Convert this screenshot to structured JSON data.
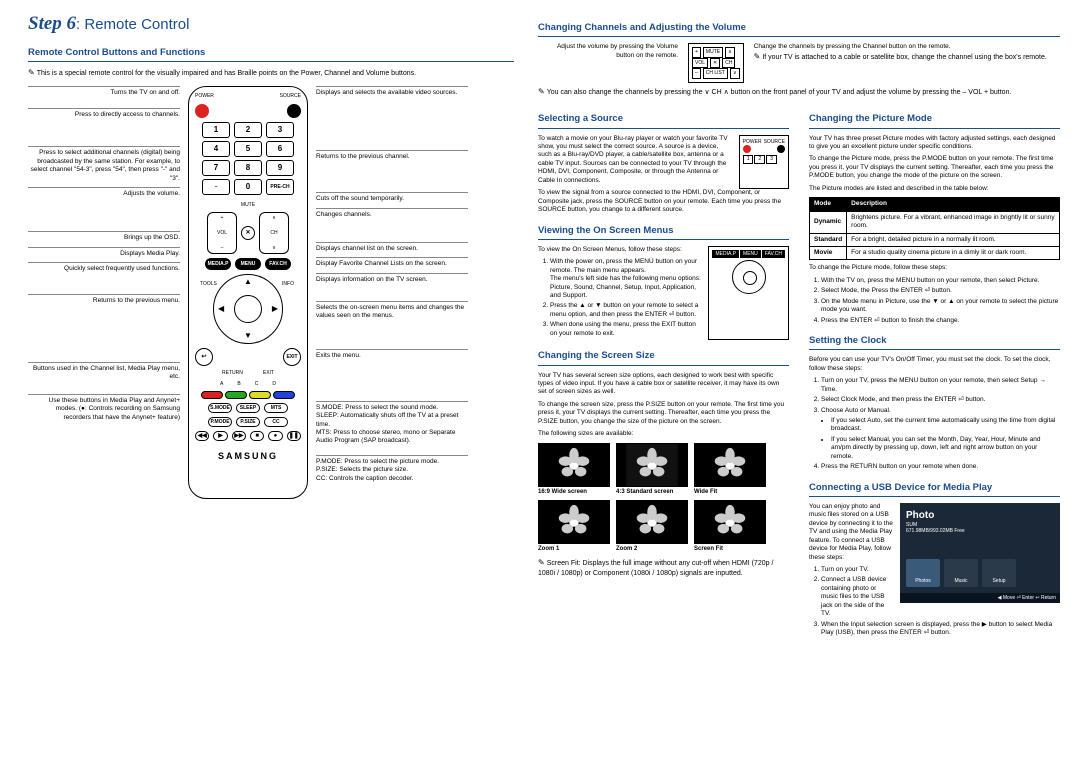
{
  "step": {
    "label": "Step 6",
    "title": "Remote Control"
  },
  "left": {
    "section1": "Remote Control Buttons and Functions",
    "introNote": "This is a special remote control for the visually impaired and has Braille points on the Power, Channel and Volume buttons.",
    "calloutsLeft": [
      "Turns the TV on and off.",
      "Press to directly access to channels.",
      "Press to select additional channels (digital) being broadcasted by the same station. For example, to select channel \"54-3\", press \"54\", then press \"-\" and \"3\".",
      "Adjusts the volume.",
      "Brings up the OSD.",
      "Displays Media Play.",
      "Quickly select frequently used functions.",
      "Returns to the previous menu.",
      "Buttons used in the Channel list, Media Play menu, etc.",
      "Use these buttons in Media Play and Anynet+ modes. (●: Controls recording on Samsung recorders that have the Anynet+ feature)"
    ],
    "calloutsRight": [
      "Displays and selects the available video sources.",
      "Returns to the previous channel.",
      "Cuts off the sound temporarily.",
      "Changes channels.",
      "Displays channel list on the screen.",
      "Display Favorite Channel Lists on the screen.",
      "Displays information on the TV screen.",
      "Selects the on-screen menu items and changes the values seen on the menus.",
      "Exits the menu.",
      "S.MODE: Press to select the sound mode.\nSLEEP: Automatically shuts off the TV at a preset time.\nMTS: Press to choose stereo, mono or Separate Audio Program (SAP broadcast).",
      "P.MODE: Press to select the picture mode.\nP.SIZE: Selects the picture size.\nCC: Controls the caption decoder."
    ],
    "remote": {
      "topLabels": {
        "power": "POWER",
        "source": "SOURCE"
      },
      "numpad": [
        [
          "1",
          "2",
          "3"
        ],
        [
          "4",
          "5",
          "6"
        ],
        [
          "7",
          "8",
          "9"
        ],
        [
          "–",
          "0",
          "PRE-CH"
        ]
      ],
      "mute": "MUTE",
      "volLabel": "VOL",
      "chLabel": "CH",
      "menuRow": [
        "MEDIA.P",
        "MENU",
        "FAV.CH"
      ],
      "tools": "TOOLS",
      "info": "INFO",
      "return": "RETURN",
      "exit": "EXIT",
      "colorLabels": [
        "A",
        "B",
        "C",
        "D"
      ],
      "colors": [
        "#d22",
        "#2a2",
        "#dd2",
        "#24d"
      ],
      "row1": [
        "S.MODE",
        "SLEEP",
        "MTS"
      ],
      "row2": [
        "P.MODE",
        "P.SIZE",
        "CC"
      ],
      "transport": [
        "◀◀",
        "▶",
        "▶▶",
        "■",
        "●",
        "❚❚"
      ],
      "brand": "SAMSUNG"
    }
  },
  "right": {
    "topSection": "Changing Channels and Adjusting the Volume",
    "topLeft": "Adjust the volume by pressing the Volume button on the remote.",
    "topRight": "Change the channels by pressing the Channel button on the remote.",
    "topRightNote": "If your TV is attached to a cable or satellite box, change the channel using the box's remote.",
    "chNote": "You can also change the channels by pressing the ∨ CH ∧ button on the front panel of your TV and adjust the volume by pressing the – VOL + button.",
    "selSource": {
      "h": "Selecting a Source",
      "p1": "To watch a movie on your Blu-ray player or watch your favorite TV show, you must select the correct source. A source is a device, such as a Blu-ray/DVD player, a cable/satellite box, antenna or a cable TV input. Sources can be connected to your TV through the HDMI, DVI, Component, Composite, or through the Antenna or Cable In connections.",
      "p2": "To view the signal from a source connected to the HDMI, DVI, Component, or Composite jack, press the SOURCE button on your remote. Each time you press the SOURCE button, you change to a different source."
    },
    "osm": {
      "h": "Viewing the On Screen Menus",
      "intro": "To view the On Screen Menus, follow these steps:",
      "s1": "With the power on, press the MENU button on your remote. The main menu appears.",
      "s1b": "The menu's left side has the following menu options: Picture, Sound, Channel, Setup, Input, Application, and Support.",
      "s2": "Press the ▲ or ▼ button on your remote to select a menu option, and then press the ENTER ⏎ button.",
      "s3": "When done using the menu, press the EXIT button on your remote to exit."
    },
    "screenSize": {
      "h": "Changing the Screen Size",
      "p1": "Your TV has several screen size options, each designed to work best with specific types of video input. If you have a cable box or satellite receiver, it may have its own set of screen sizes as well.",
      "p2": "To change the screen size, press the P.SIZE button on your remote. The first time you press it, your TV displays the current setting. Thereafter, each time you press the P.SIZE button, you change the size of the picture on the screen.",
      "p3": "The following sizes are available:",
      "thumbs1": [
        {
          "cap": "16:9 Wide screen"
        },
        {
          "cap": "4:3 Standard screen"
        },
        {
          "cap": "Wide Fit"
        }
      ],
      "thumbs2": [
        {
          "cap": "Zoom 1"
        },
        {
          "cap": "Zoom 2"
        },
        {
          "cap": "Screen Fit"
        }
      ],
      "note": "Screen Fit: Displays the full image without any cut-off when HDMI (720p / 1080i / 1080p) or Component (1080i / 1080p) signals are inputted."
    },
    "picMode": {
      "h": "Changing the Picture Mode",
      "p1": "Your TV has three preset Picture modes with factory adjusted settings, each designed to give you an excellent picture under specific conditions.",
      "p2": "To change the Picture mode, press the P.MODE button on your remote. The first time you press it, your TV displays the current setting. Thereafter, each time you press the P.MODE button, you change the mode of the picture on the screen.",
      "p3": "The Picture modes are listed and described in the table below:",
      "table": {
        "head": [
          "Mode",
          "Description"
        ],
        "rows": [
          [
            "Dynamic",
            "Brightens picture. For a vibrant, enhanced image in brightly lit or sunny room."
          ],
          [
            "Standard",
            "For a bright, detailed picture in a normally lit room."
          ],
          [
            "Movie",
            "For a studio quality cinema picture in a dimly lit or dark room."
          ]
        ]
      },
      "p4": "To change the Picture mode, follow these steps:",
      "s1": "With the TV on, press the MENU button on your remote, then select Picture.",
      "s2": "Select Mode, the Press the ENTER ⏎ button.",
      "s3": "On the Mode menu in Picture, use the ▼ or ▲ on your remote to select the picture mode you want.",
      "s4": "Press the ENTER ⏎ button to finish the change."
    },
    "clock": {
      "h": "Setting the Clock",
      "p1": "Before you can use your TV's On/Off Timer, you must set the clock. To set the clock, follow these steps:",
      "s1": "Turn on your TV, press the MENU button on your remote, then select Setup → Time.",
      "s2": "Select Clock Mode, and then press the ENTER ⏎ button.",
      "s3": "Choose Auto or Manual.",
      "b1": "If you select Auto, set the current time automatically using the time from digital broadcast.",
      "b2": "If you select Manual, you can set the Month, Day, Year, Hour, Minute and am/pm directly by pressing up, down, left and right arrow button on your remote.",
      "s4": "Press the RETURN button on your remote when done."
    },
    "usb": {
      "h": "Connecting a USB Device for Media Play",
      "p1": "You can enjoy photo and music files stored on a USB device by connecting it to the TV and using the Media Play feature. To connect a USB device for Media Play, follow these steps:",
      "s1": "Turn on your TV.",
      "s2": "Connect a USB device containing photo or music files to the USB jack on the side of the TV.",
      "s3": "When the Input selection screen is displayed, press the ▶ button to select Media Play (USB), then press the ENTER ⏎ button.",
      "shot": {
        "title": "Photo",
        "sub": "SUM\n671.98MB/993.02MB Free",
        "tiles": [
          "Photos",
          "Music",
          "Setup"
        ],
        "bar": "◀ Move   ⏎ Enter   ↩ Return"
      }
    }
  }
}
